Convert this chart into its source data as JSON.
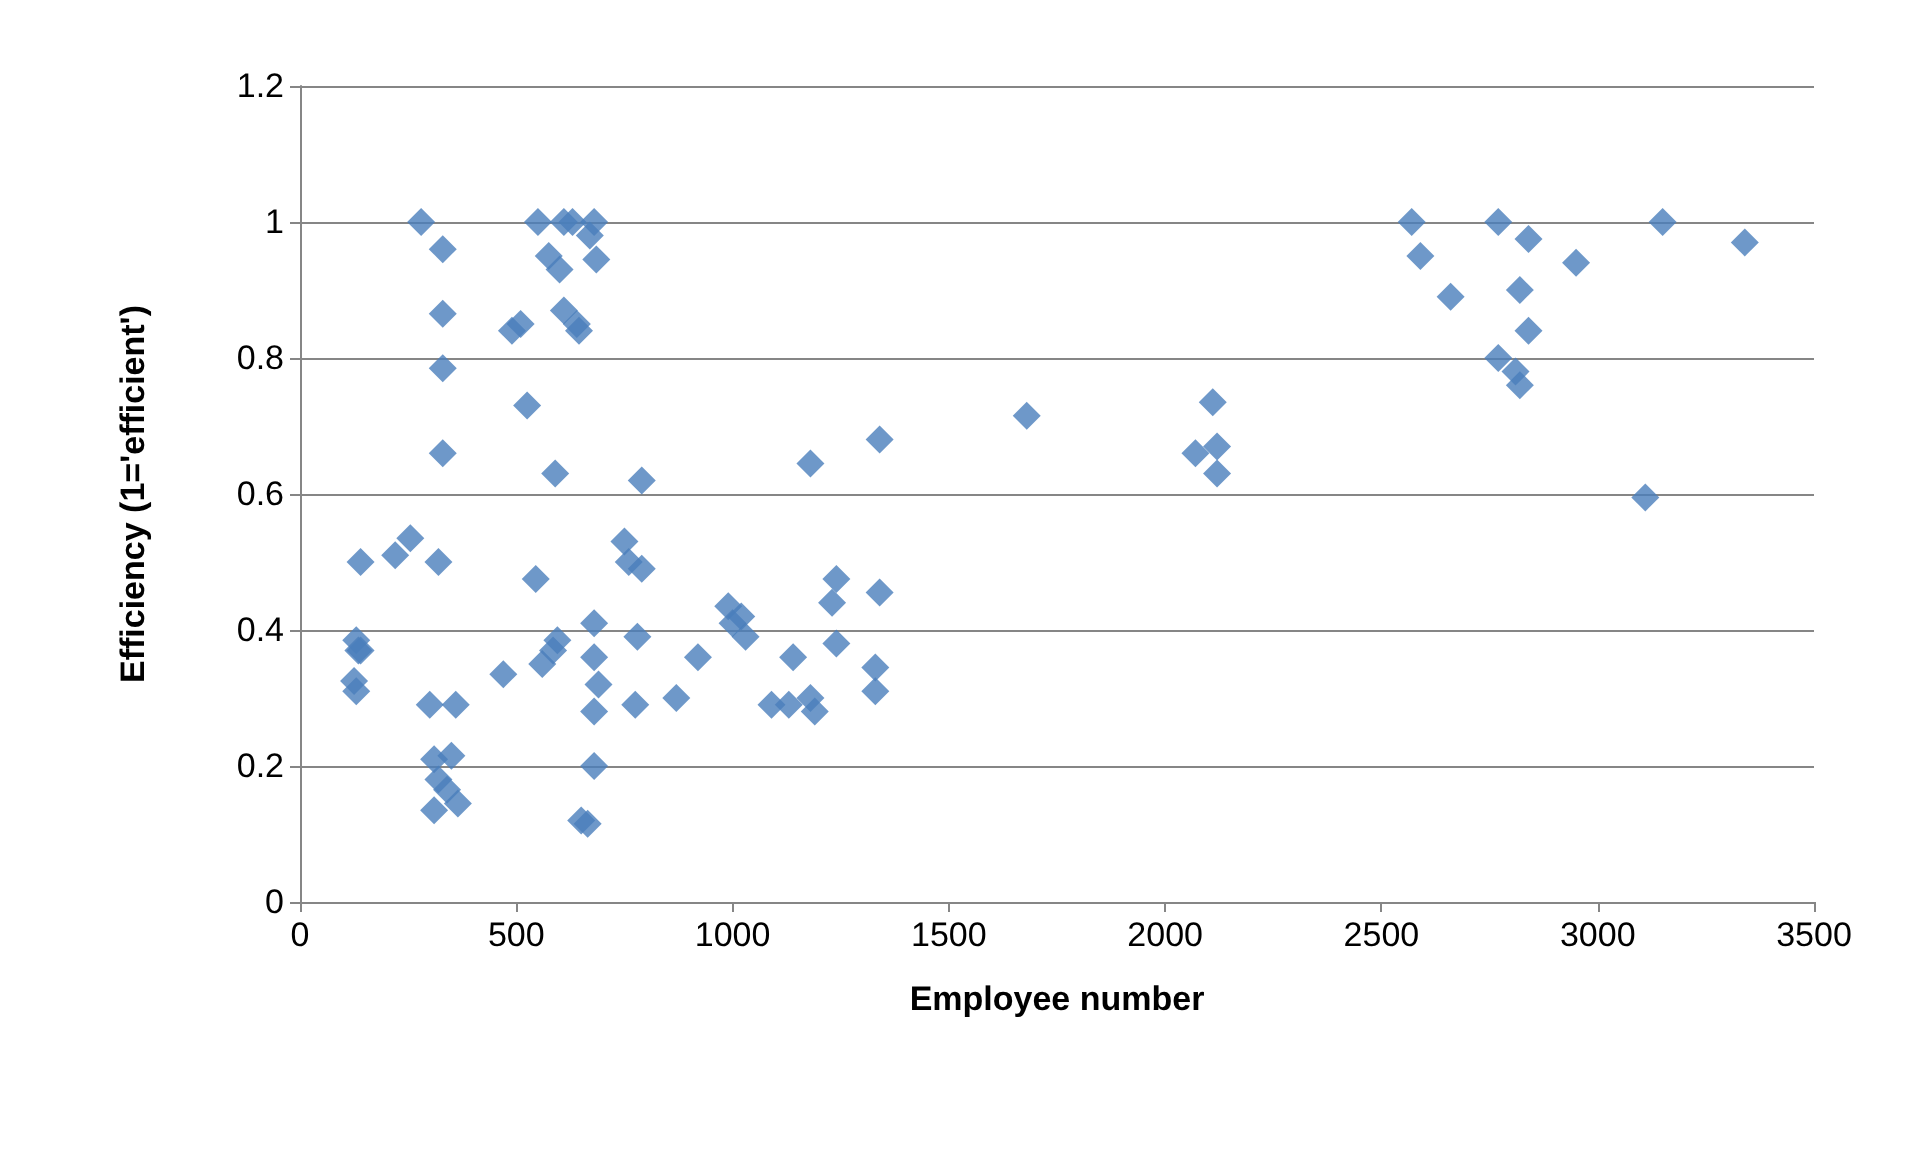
{
  "chart_data": {
    "type": "scatter",
    "xlabel": "Employee number",
    "ylabel": "Efficiency (1='efficient')",
    "xlim": [
      0,
      3500
    ],
    "xticks": [
      0,
      500,
      1000,
      1500,
      2000,
      2500,
      3000,
      3500
    ],
    "ylim": [
      0,
      1.2
    ],
    "yticks": [
      0,
      0.2,
      0.4,
      0.6,
      0.8,
      1,
      1.2
    ],
    "grid": "y",
    "marker": "diamond",
    "series": [
      {
        "color": "#4a7ebb",
        "x": [
          130,
          135,
          125,
          130,
          140,
          140,
          220,
          255,
          280,
          300,
          310,
          310,
          320,
          320,
          330,
          330,
          330,
          330,
          340,
          350,
          360,
          365,
          470,
          490,
          510,
          525,
          545,
          550,
          560,
          575,
          585,
          590,
          595,
          600,
          610,
          610,
          630,
          640,
          645,
          650,
          665,
          670,
          680,
          685,
          680,
          680,
          690,
          680,
          680,
          750,
          760,
          775,
          780,
          790,
          790,
          870,
          920,
          990,
          1000,
          1020,
          1030,
          1090,
          1130,
          1140,
          1180,
          1190,
          1180,
          1230,
          1240,
          1240,
          1330,
          1330,
          1340,
          1340,
          1680,
          2070,
          2110,
          2120,
          2120,
          2570,
          2590,
          2660,
          2770,
          2770,
          2810,
          2820,
          2820,
          2840,
          2840,
          2950,
          3110,
          3150,
          3340
        ],
        "values": [
          0.385,
          0.37,
          0.325,
          0.31,
          0.37,
          0.5,
          0.51,
          0.535,
          1.0,
          0.29,
          0.21,
          0.135,
          0.5,
          0.18,
          0.96,
          0.865,
          0.785,
          0.66,
          0.165,
          0.215,
          0.29,
          0.145,
          0.335,
          0.84,
          0.85,
          0.73,
          0.475,
          1.0,
          0.35,
          0.95,
          0.37,
          0.63,
          0.385,
          0.93,
          0.87,
          1.0,
          1.0,
          0.85,
          0.84,
          0.12,
          0.115,
          0.98,
          1.0,
          0.945,
          0.41,
          0.36,
          0.32,
          0.28,
          0.2,
          0.53,
          0.5,
          0.29,
          0.39,
          0.62,
          0.49,
          0.3,
          0.36,
          0.435,
          0.41,
          0.42,
          0.39,
          0.29,
          0.29,
          0.36,
          0.3,
          0.28,
          0.645,
          0.44,
          0.475,
          0.38,
          0.345,
          0.31,
          0.455,
          0.68,
          0.715,
          0.66,
          0.735,
          0.67,
          0.63,
          1.0,
          0.95,
          0.89,
          1.0,
          0.8,
          0.78,
          0.9,
          0.76,
          0.975,
          0.84,
          0.94,
          0.595,
          1.0,
          0.97
        ]
      }
    ]
  }
}
